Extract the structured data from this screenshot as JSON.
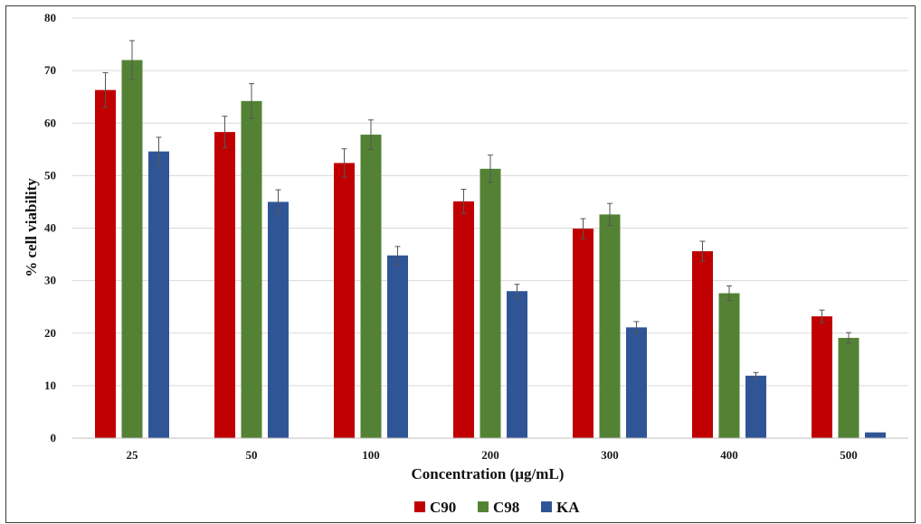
{
  "chart_data": {
    "type": "bar",
    "title": "",
    "xlabel": "Concentration (µg/mL)",
    "ylabel": "% cell viability",
    "categories": [
      "25",
      "50",
      "100",
      "200",
      "300",
      "400",
      "500"
    ],
    "ylim": [
      0,
      80
    ],
    "yticks": [
      0,
      10,
      20,
      30,
      40,
      50,
      60,
      70,
      80
    ],
    "grid": true,
    "legend_position": "bottom",
    "series": [
      {
        "name": "C90",
        "color": "#c00000",
        "values": [
          66.3,
          58.3,
          52.4,
          45.1,
          39.9,
          35.6,
          23.2
        ],
        "errors": [
          3.3,
          3.0,
          2.7,
          2.3,
          1.9,
          1.9,
          1.2
        ]
      },
      {
        "name": "C98",
        "color": "#548235",
        "values": [
          72.0,
          64.2,
          57.8,
          51.3,
          42.6,
          27.6,
          19.1
        ],
        "errors": [
          3.7,
          3.3,
          2.8,
          2.6,
          2.1,
          1.4,
          1.0
        ]
      },
      {
        "name": "KA",
        "color": "#2f5597",
        "values": [
          54.6,
          45.0,
          34.8,
          28.0,
          21.1,
          11.9,
          1.1
        ],
        "errors": [
          2.7,
          2.3,
          1.7,
          1.3,
          1.1,
          0.6,
          0.0
        ]
      }
    ]
  }
}
